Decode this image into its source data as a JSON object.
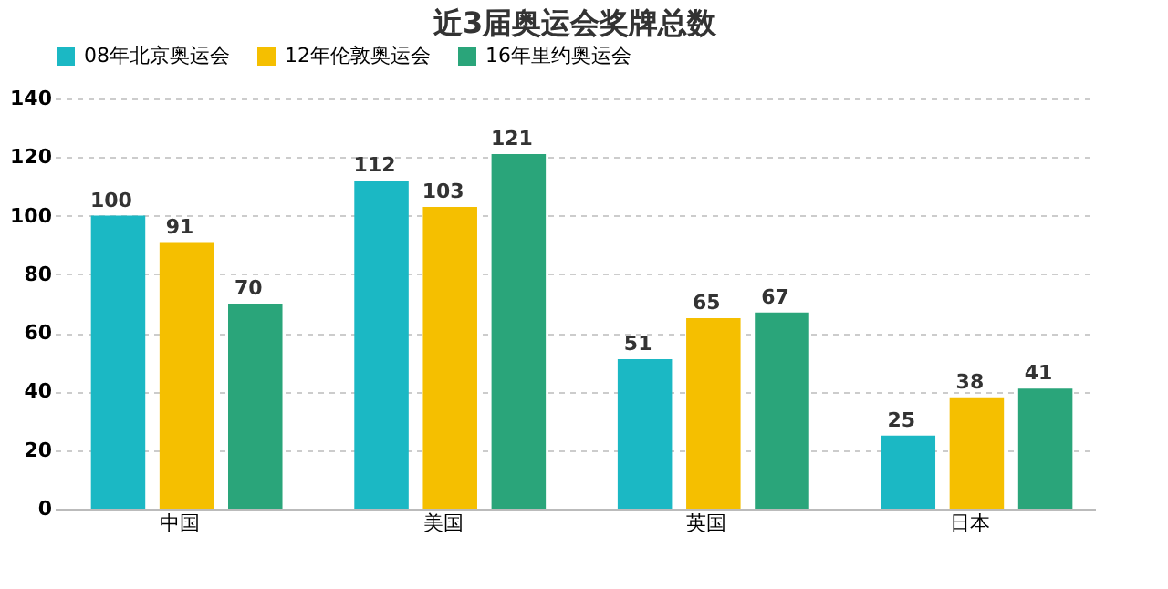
{
  "chart_data": {
    "type": "bar",
    "title": "近3届奥运会奖牌总数",
    "categories": [
      "中国",
      "美国",
      "英国",
      "日本"
    ],
    "series": [
      {
        "name": "08年北京奥运会",
        "color": "#1bb8c4",
        "values": [
          100,
          112,
          51,
          25
        ]
      },
      {
        "name": "12年伦敦奥运会",
        "color": "#f5bf00",
        "values": [
          91,
          103,
          65,
          38
        ]
      },
      {
        "name": "16年里约奥运会",
        "color": "#2aa57a",
        "values": [
          70,
          121,
          67,
          41
        ]
      }
    ],
    "ylim": [
      0,
      140
    ],
    "yticks": [
      0,
      20,
      40,
      60,
      80,
      100,
      120,
      140
    ],
    "grid": "y",
    "legend": "top",
    "data_labels": true
  }
}
